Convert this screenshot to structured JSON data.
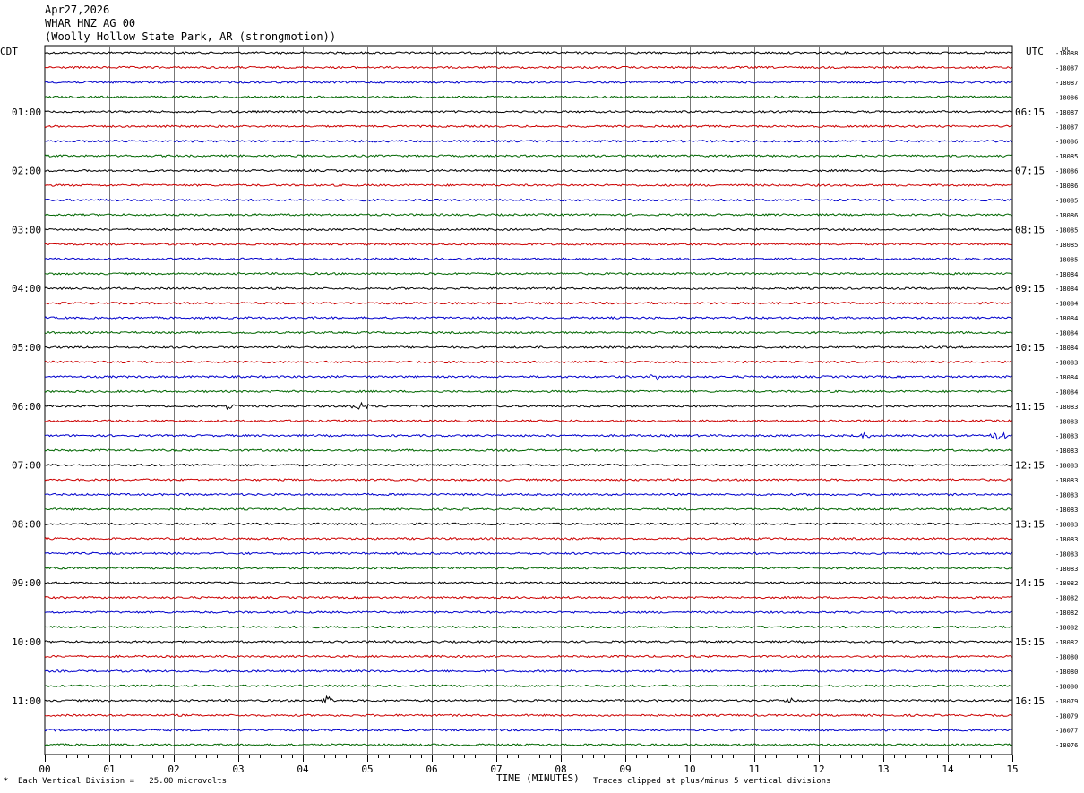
{
  "header": {
    "date": "Apr27,2026",
    "station": "WHAR HNZ AG 00",
    "location": "(Woolly Hollow State Park, AR (strongmotion))"
  },
  "tz_left": "CDT",
  "tz_right": "UTC",
  "corner_label": "DC",
  "footer": {
    "scale_note": "Each Vertical Division =   25.00 microvolts",
    "xlabel": "TIME (MINUTES)",
    "clip_note": "Traces clipped at plus/minus 5 vertical divisions"
  },
  "chart_data": {
    "type": "line",
    "title": "WHAR HNZ AG 00",
    "xlabel": "TIME (MINUTES)",
    "xlim": [
      0,
      15
    ],
    "x_ticks": [
      "00",
      "01",
      "02",
      "03",
      "04",
      "05",
      "06",
      "07",
      "08",
      "09",
      "10",
      "11",
      "12",
      "13",
      "14",
      "15"
    ],
    "trace_colors": [
      "#000000",
      "#cc0000",
      "#0000cc",
      "#006600"
    ],
    "left_hour_labels": [
      "01:00",
      "02:00",
      "03:00",
      "04:00",
      "05:00",
      "06:00",
      "07:00",
      "08:00",
      "09:00",
      "10:00",
      "11:00"
    ],
    "right_hour_labels": [
      "06:15",
      "07:15",
      "08:15",
      "09:15",
      "10:15",
      "11:15",
      "12:15",
      "13:15",
      "14:15",
      "15:15",
      "16:15"
    ],
    "dc_offsets": [
      "-18088",
      "-18087",
      "-18087",
      "-18086",
      "-18087",
      "-18087",
      "-18086",
      "-18085",
      "-18086",
      "-18086",
      "-18085",
      "-18086",
      "-18085",
      "-18085",
      "-18085",
      "-18084",
      "-18084",
      "-18084",
      "-18084",
      "-18084",
      "-18084",
      "-18083",
      "-18084",
      "-18084",
      "-18083",
      "-18083",
      "-18083",
      "-18083",
      "-18083",
      "-18083",
      "-18083",
      "-18083",
      "-18083",
      "-18083",
      "-18083",
      "-18083",
      "-18082",
      "-18082",
      "-18082",
      "-18082",
      "-18082",
      "-18080",
      "-18080",
      "-18080",
      "-18079",
      "-18079",
      "-18077",
      "-18076"
    ],
    "events": [
      {
        "trace": 24,
        "minute": 2.9,
        "amp": 4
      },
      {
        "trace": 24,
        "minute": 4.9,
        "amp": 5
      },
      {
        "trace": 26,
        "minute": 12.7,
        "amp": 4
      },
      {
        "trace": 26,
        "minute": 14.8,
        "amp": 6
      },
      {
        "trace": 44,
        "minute": 4.4,
        "amp": 7
      },
      {
        "trace": 44,
        "minute": 11.6,
        "amp": 4
      },
      {
        "trace": 22,
        "minute": 9.5,
        "amp": 3
      }
    ]
  }
}
